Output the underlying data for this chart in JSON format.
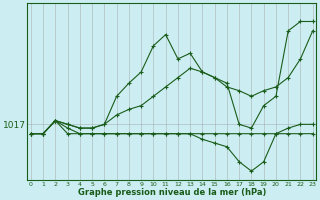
{
  "xlabel": "Graphe pression niveau de la mer (hPa)",
  "background_color": "#cceef2",
  "grid_color": "#999999",
  "line_color": "#1a5c1a",
  "hours": [
    0,
    1,
    2,
    3,
    4,
    5,
    6,
    7,
    8,
    9,
    10,
    11,
    12,
    13,
    14,
    15,
    16,
    17,
    18,
    19,
    20,
    21,
    22,
    23
  ],
  "series": [
    [
      1016.5,
      1016.5,
      1017.2,
      1017.0,
      1016.8,
      1016.8,
      1017.0,
      1018.5,
      1019.2,
      1019.8,
      1021.2,
      1021.8,
      1020.5,
      1020.8,
      1019.8,
      1019.5,
      1019.2,
      1017.0,
      1016.8,
      1018.0,
      1018.5,
      1022.0,
      1022.5,
      1022.5
    ],
    [
      1016.5,
      1016.5,
      1017.2,
      1017.0,
      1016.8,
      1016.8,
      1017.0,
      1017.5,
      1017.8,
      1018.0,
      1018.5,
      1019.0,
      1019.5,
      1020.0,
      1019.8,
      1019.5,
      1019.0,
      1018.8,
      1018.5,
      1018.8,
      1019.0,
      1019.5,
      1020.5,
      1022.0
    ],
    [
      1016.5,
      1016.5,
      1017.2,
      1016.5,
      1016.5,
      1016.5,
      1016.5,
      1016.5,
      1016.5,
      1016.5,
      1016.5,
      1016.5,
      1016.5,
      1016.5,
      1016.5,
      1016.5,
      1016.5,
      1016.5,
      1016.5,
      1016.5,
      1016.5,
      1016.5,
      1016.5,
      1016.5
    ],
    [
      1016.5,
      1016.5,
      1017.2,
      1016.8,
      1016.5,
      1016.5,
      1016.5,
      1016.5,
      1016.5,
      1016.5,
      1016.5,
      1016.5,
      1016.5,
      1016.5,
      1016.2,
      1016.0,
      1015.8,
      1015.0,
      1014.5,
      1015.0,
      1016.5,
      1016.8,
      1017.0,
      1017.0
    ]
  ],
  "ytick_value": 1017,
  "ytick_label": "1017",
  "xlim": [
    0,
    23
  ],
  "ylim": [
    1014.0,
    1023.5
  ]
}
